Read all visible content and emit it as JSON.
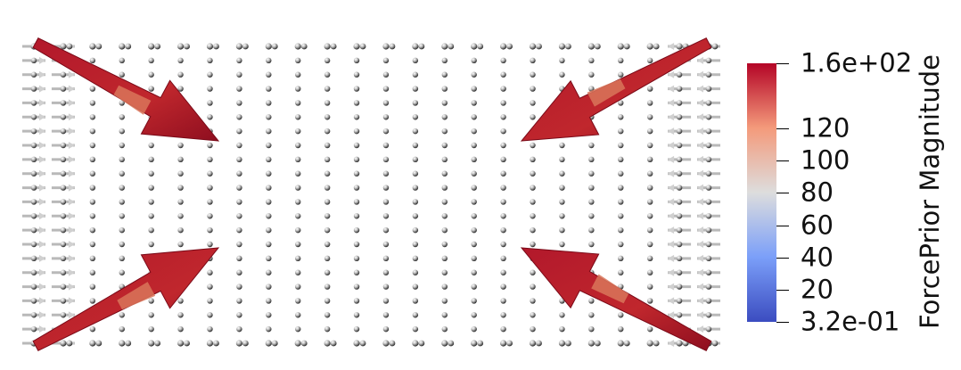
{
  "colorbar": {
    "title": "ForcePrior Magnitude",
    "range": [
      0.32,
      160
    ],
    "labels": [
      {
        "value": 160,
        "text": "1.6e+02"
      },
      {
        "value": 120,
        "text": "120"
      },
      {
        "value": 100,
        "text": "100"
      },
      {
        "value": 80,
        "text": "80"
      },
      {
        "value": 60,
        "text": "60"
      },
      {
        "value": 40,
        "text": "40"
      },
      {
        "value": 20,
        "text": "20"
      },
      {
        "value": 0.32,
        "text": "3.2e-01"
      }
    ],
    "colors": {
      "low": "#3b4cc0",
      "mid": "#dddddd",
      "high": "#b40426"
    }
  },
  "scene": {
    "glyph": "arrow",
    "sphere_color": "#e8e8e8",
    "big_arrow_color": "#b2182b",
    "grid_columns": 24,
    "grid_rows": 22
  }
}
